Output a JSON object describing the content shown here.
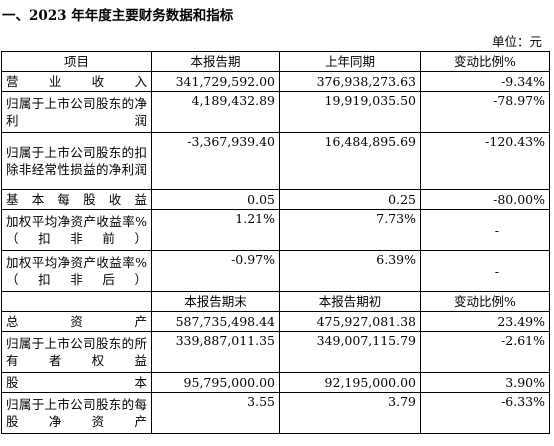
{
  "heading": "一、2023 年年度主要财务数据和指标",
  "unit": "单位：元",
  "table": {
    "header": [
      "项目",
      "本报告期",
      "上年同期",
      "变动比例%"
    ],
    "rows1": [
      {
        "label": "营业收入",
        "cur": "341,729,592.00",
        "prev": "376,938,273.63",
        "chg": "-9.34%"
      },
      {
        "label": "归属于上市公司股东的净利润",
        "cur": "4,189,432.89",
        "prev": "19,919,035.50",
        "chg": "-78.97%"
      },
      {
        "label": "归属于上市公司股东的扣除非经常性损益的净利润",
        "cur": "-3,367,939.40",
        "prev": "16,484,895.69",
        "chg": "-120.43%"
      },
      {
        "label": "基本每股收益",
        "cur": "0.05",
        "prev": "0.25",
        "chg": "-80.00%"
      },
      {
        "label": "加权平均净资产收益率%（扣非前）",
        "cur": "1.21%",
        "prev": "7.73%",
        "chg": "-"
      },
      {
        "label": "加权平均净资产收益率%（扣非后）",
        "cur": "-0.97%",
        "prev": "6.39%",
        "chg": "-"
      }
    ],
    "subheader": [
      "",
      "本报告期末",
      "本报告期初",
      "变动比例%"
    ],
    "rows2": [
      {
        "label": "总资产",
        "cur": "587,735,498.44",
        "prev": "475,927,081.38",
        "chg": "23.49%"
      },
      {
        "label": "归属于上市公司股东的所有者权益",
        "cur": "339,887,011.35",
        "prev": "349,007,115.79",
        "chg": "-2.61%"
      },
      {
        "label": "股本",
        "cur": "95,795,000.00",
        "prev": "92,195,000.00",
        "chg": "3.90%"
      },
      {
        "label": "归属于上市公司股东的每股净资产",
        "cur": "3.55",
        "prev": "3.79",
        "chg": "-6.33%"
      }
    ]
  }
}
